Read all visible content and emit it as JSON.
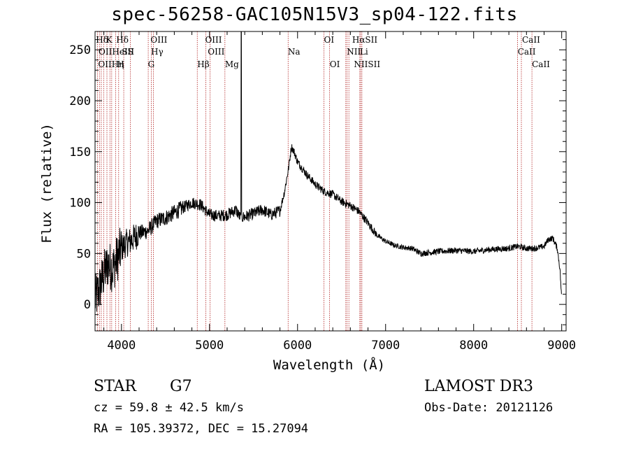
{
  "chart_data": {
    "type": "line",
    "title": "spec-56258-GAC105N15V3_sp04-122.fits",
    "xlabel": "Wavelength (Å)",
    "ylabel": "Flux (relative)",
    "xlim": [
      3700,
      9050
    ],
    "ylim": [
      -26,
      268
    ],
    "xticks": [
      4000,
      5000,
      6000,
      7000,
      8000,
      9000
    ],
    "yticks": [
      0,
      50,
      100,
      150,
      200,
      250
    ],
    "spectrum_anchors": {
      "x": [
        3700,
        3750,
        3800,
        3850,
        3900,
        3950,
        4000,
        4050,
        4100,
        4200,
        4300,
        4400,
        4500,
        4600,
        4700,
        4800,
        4900,
        5000,
        5100,
        5200,
        5300,
        5350,
        5400,
        5500,
        5600,
        5700,
        5800,
        5850,
        5900,
        5930,
        5960,
        6000,
        6100,
        6200,
        6300,
        6400,
        6500,
        6600,
        6700,
        6800,
        6900,
        7000,
        7100,
        7200,
        7300,
        7400,
        7600,
        7800,
        8000,
        8200,
        8400,
        8500,
        8600,
        8700,
        8800,
        8850,
        8900,
        8950,
        8980,
        9000
      ],
      "y": [
        5,
        15,
        30,
        40,
        35,
        45,
        55,
        60,
        62,
        70,
        72,
        82,
        85,
        90,
        95,
        100,
        98,
        88,
        87,
        88,
        93,
        85,
        86,
        89,
        93,
        88,
        92,
        110,
        135,
        155,
        150,
        140,
        128,
        118,
        111,
        108,
        101,
        97,
        91,
        80,
        68,
        62,
        58,
        56,
        55,
        50,
        52,
        53,
        52,
        54,
        55,
        57,
        55,
        55,
        57,
        64,
        65,
        55,
        35,
        5
      ]
    },
    "spike": {
      "x": 5360,
      "y": 268
    },
    "lines_top": [
      {
        "label": "Hδ",
        "x": 3710,
        "row": 1
      },
      {
        "label": "K",
        "x": 3825,
        "row": 1
      },
      {
        "label": "Hδ",
        "x": 3940,
        "row": 1
      },
      {
        "label": "OIII",
        "x": 4330,
        "row": 1
      },
      {
        "label": "OIII",
        "x": 4950,
        "row": 1
      },
      {
        "label": "OI",
        "x": 6300,
        "row": 1
      },
      {
        "label": "HαSII",
        "x": 6620,
        "row": 1
      },
      {
        "label": "CaII",
        "x": 8550,
        "row": 1
      },
      {
        "label": "OIIHeIS",
        "x": 3740,
        "row": 2
      },
      {
        "label": "SII",
        "x": 4005,
        "row": 2
      },
      {
        "label": "Hγ",
        "x": 4335,
        "row": 2
      },
      {
        "label": "OIII",
        "x": 4980,
        "row": 2
      },
      {
        "label": "Na",
        "x": 5890,
        "row": 2
      },
      {
        "label": "NII",
        "x": 6560,
        "row": 2
      },
      {
        "label": "Li",
        "x": 6708,
        "row": 2
      },
      {
        "label": "CaII",
        "x": 8500,
        "row": 2
      },
      {
        "label": "OIIHη",
        "x": 3735,
        "row": 3
      },
      {
        "label": "H",
        "x": 3950,
        "row": 3
      },
      {
        "label": "G",
        "x": 4300,
        "row": 3
      },
      {
        "label": "Hβ",
        "x": 4861,
        "row": 3
      },
      {
        "label": "Mg",
        "x": 5175,
        "row": 3
      },
      {
        "label": "OI",
        "x": 6365,
        "row": 3
      },
      {
        "label": "NIISII",
        "x": 6640,
        "row": 3
      },
      {
        "label": "CaII",
        "x": 8662,
        "row": 3
      }
    ],
    "line_positions": [
      3727,
      3750,
      3771,
      3798,
      3835,
      3869,
      3889,
      3934,
      3968,
      4026,
      4102,
      4304,
      4340,
      4363,
      4861,
      4959,
      5007,
      5175,
      5893,
      6300,
      6364,
      6548,
      6563,
      6583,
      6707,
      6717,
      6731,
      8498,
      8542,
      8662
    ]
  },
  "info": {
    "object_class": "STAR",
    "subclass": "G7",
    "cz": "cz = 59.8 ± 42.5 km/s",
    "radec": "RA = 105.39372, DEC =  15.27094",
    "survey": "LAMOST DR3",
    "obsdate": "Obs-Date: 20121126"
  },
  "colors": {
    "line_marker": "#b22222",
    "spectrum": "#000000",
    "axes": "#000000"
  }
}
